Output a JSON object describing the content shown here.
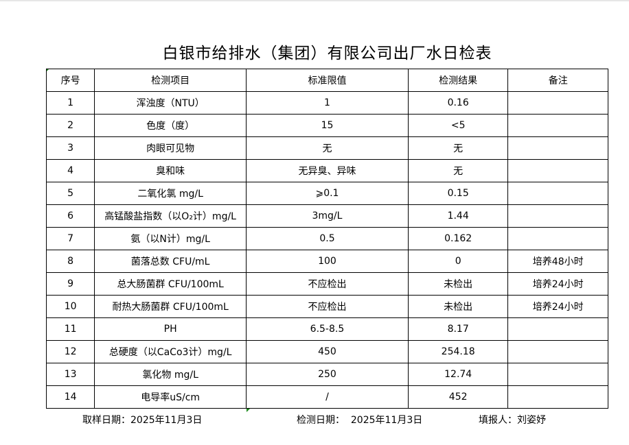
{
  "title": "白银市给排水（集团）有限公司出厂水日检表",
  "headers": [
    "序号",
    "检测项目",
    "标准限值",
    "检测结果",
    "备注"
  ],
  "rows": [
    [
      "1",
      "浑浊度（NTU）",
      "1",
      "0.16",
      ""
    ],
    [
      "2",
      "色度（度）",
      "15",
      "<5",
      ""
    ],
    [
      "3",
      "肉眼可见物",
      "无",
      "无",
      ""
    ],
    [
      "4",
      "臭和味",
      "无异臭、异味",
      "无",
      ""
    ],
    [
      "5",
      "二氧化氯 mg/L",
      "⩾0.1",
      "0.15",
      ""
    ],
    [
      "6",
      "高锰酸盐指数（以O₂计）mg/L",
      "3mg/L",
      "1.44",
      ""
    ],
    [
      "7",
      "氨（以N计）mg/L",
      "0.5",
      "0.162",
      ""
    ],
    [
      "8",
      "菌落总数 CFU/mL",
      "100",
      "0",
      "培养48小时"
    ],
    [
      "9",
      "总大肠菌群 CFU/100mL",
      "不应检出",
      "未检出",
      "培养24小时"
    ],
    [
      "10",
      "耐热大肠菌群 CFU/100mL",
      "不应检出",
      "未检出",
      "培养24小时"
    ],
    [
      "11",
      "PH",
      "6.5-8.5",
      "8.17",
      ""
    ],
    [
      "12",
      "总硬度（以CaCo3计）mg/L",
      "450",
      "254.18",
      ""
    ],
    [
      "13",
      "氯化物 mg/L",
      "250",
      "12.74",
      ""
    ],
    [
      "14",
      "电导率uS/cm",
      "/",
      "452",
      ""
    ]
  ],
  "footer": {
    "sample_date": "取样日期：2025年11月3日",
    "test_date": "检测日期：  2025年11月3日",
    "reporter": "填报人：刘姿妤"
  }
}
